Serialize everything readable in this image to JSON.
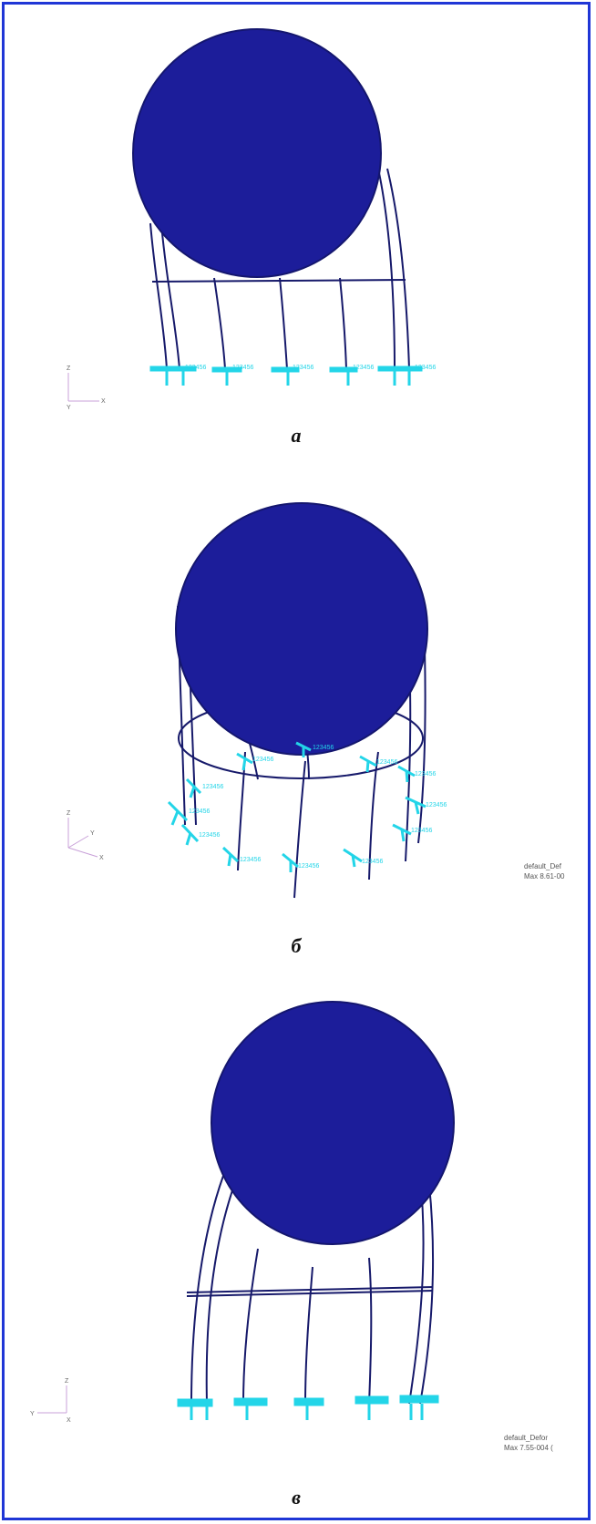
{
  "captions": {
    "a": "а",
    "b": "б",
    "c": "в"
  },
  "axis_labels": {
    "z": "Z",
    "x": "X",
    "y": "Y"
  },
  "constraint_label": "123456",
  "legend_b": {
    "line1": "default_Def",
    "line2": "Max 8.61-00"
  },
  "legend_c": {
    "line1": "default_Defor",
    "line2": "Max 7.55-004 ("
  },
  "colors": {
    "sphere": "#1c1d9a",
    "leg": "#16196a",
    "constraint": "#23d5e8",
    "frame": "#1f36d6",
    "triad": "#c8a0d8"
  }
}
